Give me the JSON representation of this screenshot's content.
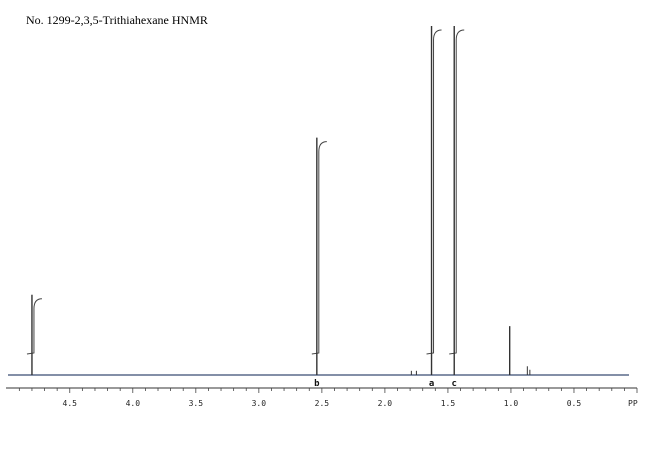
{
  "title": "No. 1299-2,3,5-Trithiahexane HNMR",
  "chart_data": {
    "type": "line",
    "title": "No. 1299-2,3,5-Trithiahexane HNMR",
    "xlabel": "",
    "x_unit_label": "PP",
    "xlim": [
      4.99,
      0.0
    ],
    "x_reversed": true,
    "ylim": [
      0,
      1.0
    ],
    "grid": false,
    "legend": "none",
    "tick_labels": [
      "4.5",
      "4.0",
      "3.5",
      "3.0",
      "2.5",
      "2.0",
      "1.5",
      "1.0",
      "0.5"
    ],
    "tick_values": [
      4.5,
      4.0,
      3.5,
      3.0,
      2.5,
      2.0,
      1.5,
      1.0,
      0.5
    ],
    "peaks": [
      {
        "ppm": 4.8,
        "height": 0.23,
        "label": ""
      },
      {
        "ppm": 2.54,
        "height": 0.68,
        "label": "b"
      },
      {
        "ppm": 1.63,
        "height": 1.0,
        "label": "a"
      },
      {
        "ppm": 1.45,
        "height": 1.0,
        "label": "c"
      },
      {
        "ppm": 1.01,
        "height": 0.14,
        "label": ""
      },
      {
        "ppm": 0.87,
        "height": 0.025,
        "label": ""
      },
      {
        "ppm": 0.85,
        "height": 0.015,
        "label": ""
      },
      {
        "ppm": 1.75,
        "height": 0.012,
        "label": ""
      },
      {
        "ppm": 1.79,
        "height": 0.012,
        "label": ""
      }
    ],
    "integrals": [
      {
        "ppm": 4.8,
        "height": 0.23
      },
      {
        "ppm": 2.54,
        "height": 0.68
      },
      {
        "ppm": 1.63,
        "height": 1.0
      },
      {
        "ppm": 1.45,
        "height": 1.0
      }
    ]
  }
}
